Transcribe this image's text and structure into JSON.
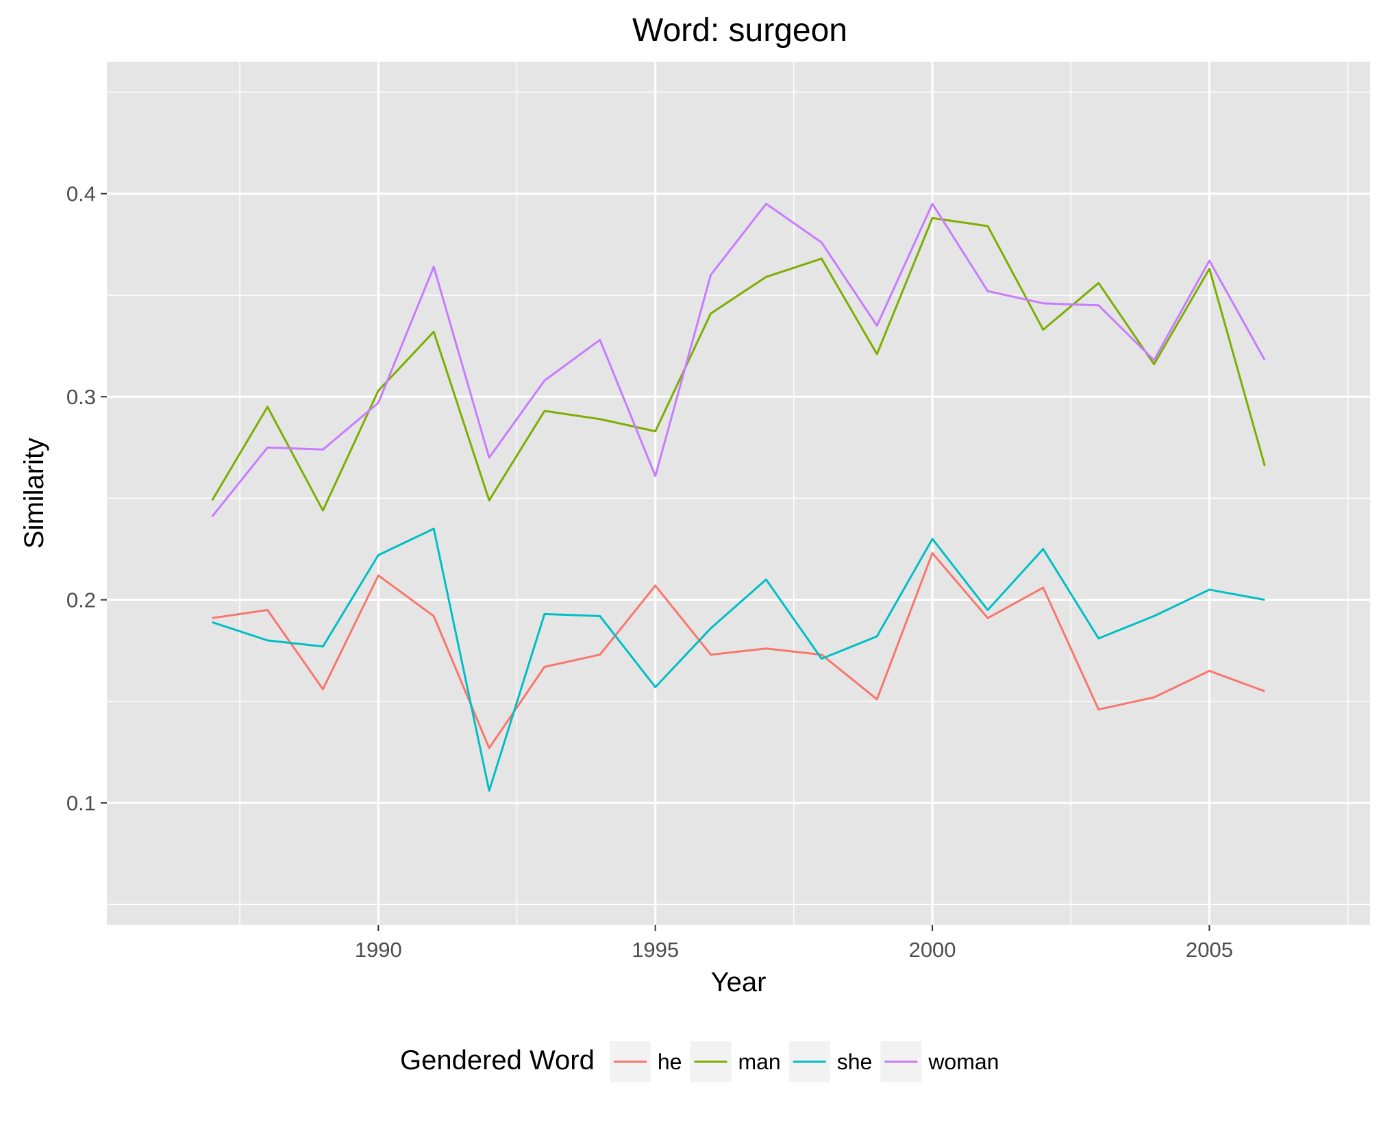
{
  "chart_data": {
    "type": "line",
    "title": "Word: surgeon",
    "xlabel": "Year",
    "ylabel": "Similarity",
    "x": [
      1987,
      1988,
      1989,
      1990,
      1991,
      1992,
      1993,
      1994,
      1995,
      1996,
      1997,
      1998,
      1999,
      2000,
      2001,
      2002,
      2003,
      2004,
      2005,
      2006
    ],
    "xlim": [
      1985.1,
      2007.9
    ],
    "ylim": [
      0.04,
      0.465
    ],
    "x_ticks": [
      {
        "value": 1990,
        "label": "1990"
      },
      {
        "value": 1995,
        "label": "1995"
      },
      {
        "value": 2000,
        "label": "2000"
      },
      {
        "value": 2005,
        "label": "2005"
      }
    ],
    "y_ticks": [
      {
        "value": 0.1,
        "label": "0.1"
      },
      {
        "value": 0.2,
        "label": "0.2"
      },
      {
        "value": 0.3,
        "label": "0.3"
      },
      {
        "value": 0.4,
        "label": "0.4"
      }
    ],
    "grid": true,
    "legend": {
      "title": "Gendered Word",
      "position": "bottom"
    },
    "series": [
      {
        "name": "he",
        "color": "#F8766D",
        "values": [
          0.191,
          0.195,
          0.156,
          0.212,
          0.192,
          0.127,
          0.167,
          0.173,
          0.207,
          0.173,
          0.176,
          0.173,
          0.151,
          0.223,
          0.191,
          0.206,
          0.146,
          0.152,
          0.165,
          0.155
        ]
      },
      {
        "name": "man",
        "color": "#7CAE00",
        "values": [
          0.249,
          0.295,
          0.244,
          0.303,
          0.332,
          0.249,
          0.293,
          0.289,
          0.283,
          0.341,
          0.359,
          0.368,
          0.321,
          0.388,
          0.384,
          0.333,
          0.356,
          0.316,
          0.363,
          0.266
        ]
      },
      {
        "name": "she",
        "color": "#00BFC4",
        "values": [
          0.189,
          0.18,
          0.177,
          0.222,
          0.235,
          0.106,
          0.193,
          0.192,
          0.157,
          0.186,
          0.21,
          0.171,
          0.182,
          0.23,
          0.195,
          0.225,
          0.181,
          0.192,
          0.205,
          0.2
        ]
      },
      {
        "name": "woman",
        "color": "#C77CFF",
        "values": [
          0.241,
          0.275,
          0.274,
          0.297,
          0.364,
          0.27,
          0.308,
          0.328,
          0.261,
          0.36,
          0.395,
          0.376,
          0.335,
          0.395,
          0.352,
          0.346,
          0.345,
          0.318,
          0.367,
          0.318
        ]
      }
    ]
  }
}
